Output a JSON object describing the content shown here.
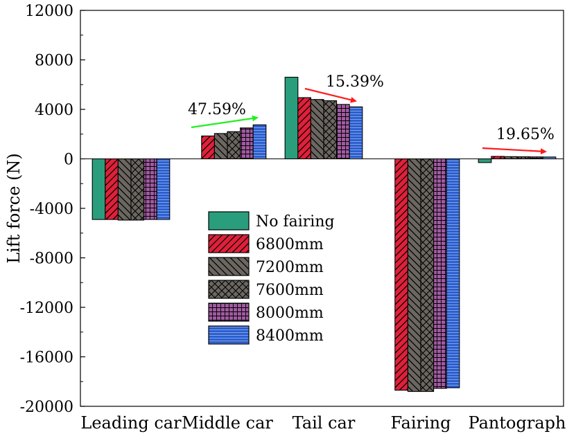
{
  "chart_data": {
    "type": "bar",
    "title": "",
    "xlabel": "",
    "ylabel": "Lift force (N)",
    "ylim": [
      -20000,
      12000
    ],
    "yticks": [
      12000,
      8000,
      4000,
      0,
      -4000,
      -8000,
      -12000,
      -16000,
      -20000
    ],
    "ytick_labels": [
      "12000",
      "8000",
      "4000",
      "0",
      "-4000",
      "-8000",
      "-12000",
      "-16000",
      "-20000"
    ],
    "categories": [
      "Leading car",
      "Middle car",
      "Tail car",
      "Fairing",
      "Pantograph"
    ],
    "series": [
      {
        "name": "No fairing",
        "values": [
          -4900,
          0,
          6600,
          0,
          -300
        ],
        "color": "#2a9d7c",
        "pattern": "solid"
      },
      {
        "name": "6800mm",
        "values": [
          -4900,
          1850,
          4950,
          -18700,
          200
        ],
        "color": "#e0203a",
        "pattern": "diag-right"
      },
      {
        "name": "7200mm",
        "values": [
          -4950,
          2050,
          4800,
          -18800,
          180
        ],
        "color": "#6b6660",
        "pattern": "diag-left"
      },
      {
        "name": "7600mm",
        "values": [
          -4950,
          2200,
          4700,
          -18800,
          170
        ],
        "color": "#6b6660",
        "pattern": "cross"
      },
      {
        "name": "8000mm",
        "values": [
          -4900,
          2500,
          4400,
          -18550,
          160
        ],
        "color": "#a05aa0",
        "pattern": "grid"
      },
      {
        "name": "8400mm",
        "values": [
          -4900,
          2750,
          4200,
          -18500,
          150
        ],
        "color": "#2a5fd0",
        "pattern": "hlines"
      }
    ],
    "annotations": [
      {
        "text": "47.59%",
        "category": "Middle car",
        "direction": "up",
        "arrow_color": "#22ee22"
      },
      {
        "text": "15.39%",
        "category": "Tail car",
        "direction": "down",
        "arrow_color": "#ff1a1a"
      },
      {
        "text": "19.65%",
        "category": "Pantograph",
        "direction": "down",
        "arrow_color": "#ff1a1a"
      }
    ],
    "legend": {
      "position": "center"
    }
  }
}
